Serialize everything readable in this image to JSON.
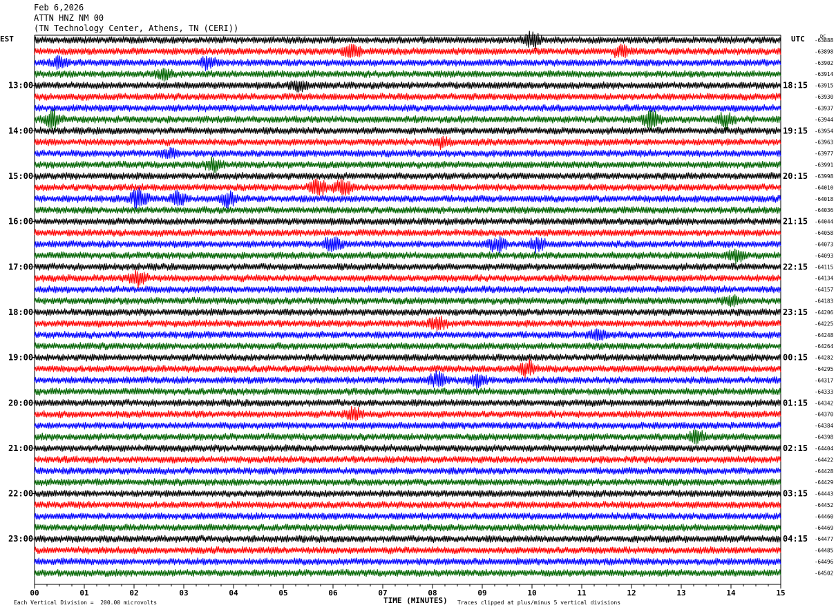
{
  "header": {
    "date": "Feb 6,2026",
    "station": "ATTN HNZ NM 00",
    "location": "(TN Technology Center, Athens, TN (CERI))"
  },
  "left_timezone": "EST",
  "right_timezone": "UTC",
  "dc_label": "DC",
  "footer": {
    "scale": "Each Vertical Division =  200.00 microvolts",
    "xlabel": "TIME (MINUTES)",
    "clip_note": "Traces clipped at plus/minus 5 vertical divisions"
  },
  "colors": {
    "cycle": [
      "#000000",
      "#ff0000",
      "#0000ff",
      "#006400"
    ],
    "frame": "#000000"
  },
  "chart_data": {
    "type": "line",
    "title": "ATTN HNZ NM 00",
    "xlabel": "TIME (MINUTES)",
    "xlim": [
      0,
      15
    ],
    "x_ticks": [
      "00",
      "01",
      "02",
      "03",
      "04",
      "05",
      "06",
      "07",
      "08",
      "09",
      "10",
      "11",
      "12",
      "13",
      "14",
      "15"
    ],
    "rows_per_hour": 4,
    "row_count": 48,
    "left_hour_labels": [
      "13:00",
      "14:00",
      "15:00",
      "16:00",
      "17:00",
      "18:00",
      "19:00",
      "20:00",
      "21:00",
      "22:00",
      "23:00"
    ],
    "right_hour_labels": [
      "18:15",
      "19:15",
      "20:15",
      "21:15",
      "22:15",
      "23:15",
      "00:15",
      "01:15",
      "02:15",
      "03:15",
      "04:15"
    ],
    "first_labeled_row": 4,
    "dc_offsets": [
      "-63888",
      "-63898",
      "-63902",
      "-63914",
      "-63915",
      "-63930",
      "-63937",
      "-63944",
      "-63954",
      "-63963",
      "-63977",
      "-63991",
      "-63998",
      "-64010",
      "-64018",
      "-64036",
      "-64044",
      "-64058",
      "-64073",
      "-64093",
      "-64115",
      "-64134",
      "-64157",
      "-64183",
      "-64206",
      "-64225",
      "-64248",
      "-64264",
      "-64282",
      "-64295",
      "-64317",
      "-64333",
      "-64342",
      "-64370",
      "-64384",
      "-64398",
      "-64404",
      "-64422",
      "-64428",
      "-64429",
      "-64443",
      "-64452",
      "-64460",
      "-64469",
      "-64477",
      "-64485",
      "-64496",
      "-64502"
    ],
    "events": [
      {
        "row": 0,
        "minute": 10.0,
        "amp": 2.2
      },
      {
        "row": 1,
        "minute": 6.4,
        "amp": 2.0
      },
      {
        "row": 1,
        "minute": 11.8,
        "amp": 1.6
      },
      {
        "row": 2,
        "minute": 0.5,
        "amp": 1.5
      },
      {
        "row": 2,
        "minute": 3.5,
        "amp": 1.8
      },
      {
        "row": 3,
        "minute": 2.6,
        "amp": 1.6
      },
      {
        "row": 4,
        "minute": 5.3,
        "amp": 1.4
      },
      {
        "row": 7,
        "minute": 0.35,
        "amp": 2.6
      },
      {
        "row": 7,
        "minute": 12.4,
        "amp": 2.6
      },
      {
        "row": 7,
        "minute": 13.9,
        "amp": 1.8
      },
      {
        "row": 9,
        "minute": 8.2,
        "amp": 1.3
      },
      {
        "row": 10,
        "minute": 2.7,
        "amp": 1.5
      },
      {
        "row": 11,
        "minute": 3.6,
        "amp": 1.6
      },
      {
        "row": 13,
        "minute": 5.7,
        "amp": 2.3
      },
      {
        "row": 13,
        "minute": 6.2,
        "amp": 2.1
      },
      {
        "row": 14,
        "minute": 2.1,
        "amp": 2.6
      },
      {
        "row": 14,
        "minute": 2.9,
        "amp": 2.0
      },
      {
        "row": 14,
        "minute": 3.9,
        "amp": 2.0
      },
      {
        "row": 18,
        "minute": 6.0,
        "amp": 2.2
      },
      {
        "row": 18,
        "minute": 9.3,
        "amp": 2.2
      },
      {
        "row": 18,
        "minute": 10.1,
        "amp": 1.8
      },
      {
        "row": 19,
        "minute": 14.1,
        "amp": 1.6
      },
      {
        "row": 21,
        "minute": 2.1,
        "amp": 2.3
      },
      {
        "row": 23,
        "minute": 14.0,
        "amp": 1.5
      },
      {
        "row": 25,
        "minute": 8.1,
        "amp": 1.8
      },
      {
        "row": 26,
        "minute": 11.3,
        "amp": 1.6
      },
      {
        "row": 29,
        "minute": 9.9,
        "amp": 2.2
      },
      {
        "row": 30,
        "minute": 8.1,
        "amp": 2.3
      },
      {
        "row": 30,
        "minute": 8.9,
        "amp": 2.0
      },
      {
        "row": 33,
        "minute": 6.4,
        "amp": 1.9
      },
      {
        "row": 35,
        "minute": 13.3,
        "amp": 1.6
      }
    ]
  }
}
